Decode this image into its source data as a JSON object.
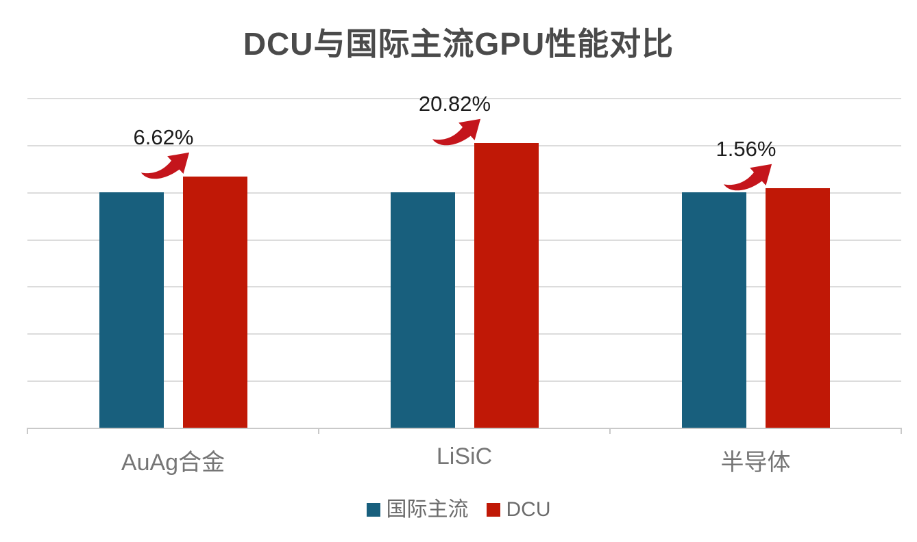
{
  "chart_data": {
    "type": "bar",
    "title": "DCU与国际主流GPU性能对比",
    "categories": [
      "AuAg合金",
      "LiSiC",
      "半导体"
    ],
    "series": [
      {
        "name": "国际主流",
        "color": "#185F7D",
        "values": [
          100,
          100,
          100
        ]
      },
      {
        "name": "DCU",
        "color": "#C01806",
        "values": [
          106.62,
          120.82,
          101.56
        ]
      }
    ],
    "annotations": [
      {
        "category": "AuAg合金",
        "label": "6.62%"
      },
      {
        "category": "LiSiC",
        "label": "20.82%"
      },
      {
        "category": "半导体",
        "label": "1.56%"
      }
    ],
    "ylim": [
      0,
      140
    ],
    "gridline_step": 20,
    "grid": true,
    "y_axis_labels_visible": false,
    "legend_position": "bottom",
    "arrow_icon_color": "#C4151C"
  },
  "style": {
    "title_color": "#4A4A4A",
    "category_label_color": "#757575",
    "data_label_color": "#1C1C1C",
    "legend_text_color": "#6B6B6B",
    "gridline_color": "#DCDCDC",
    "axis_color": "#C9C9C9",
    "background": "#FFFFFF"
  }
}
